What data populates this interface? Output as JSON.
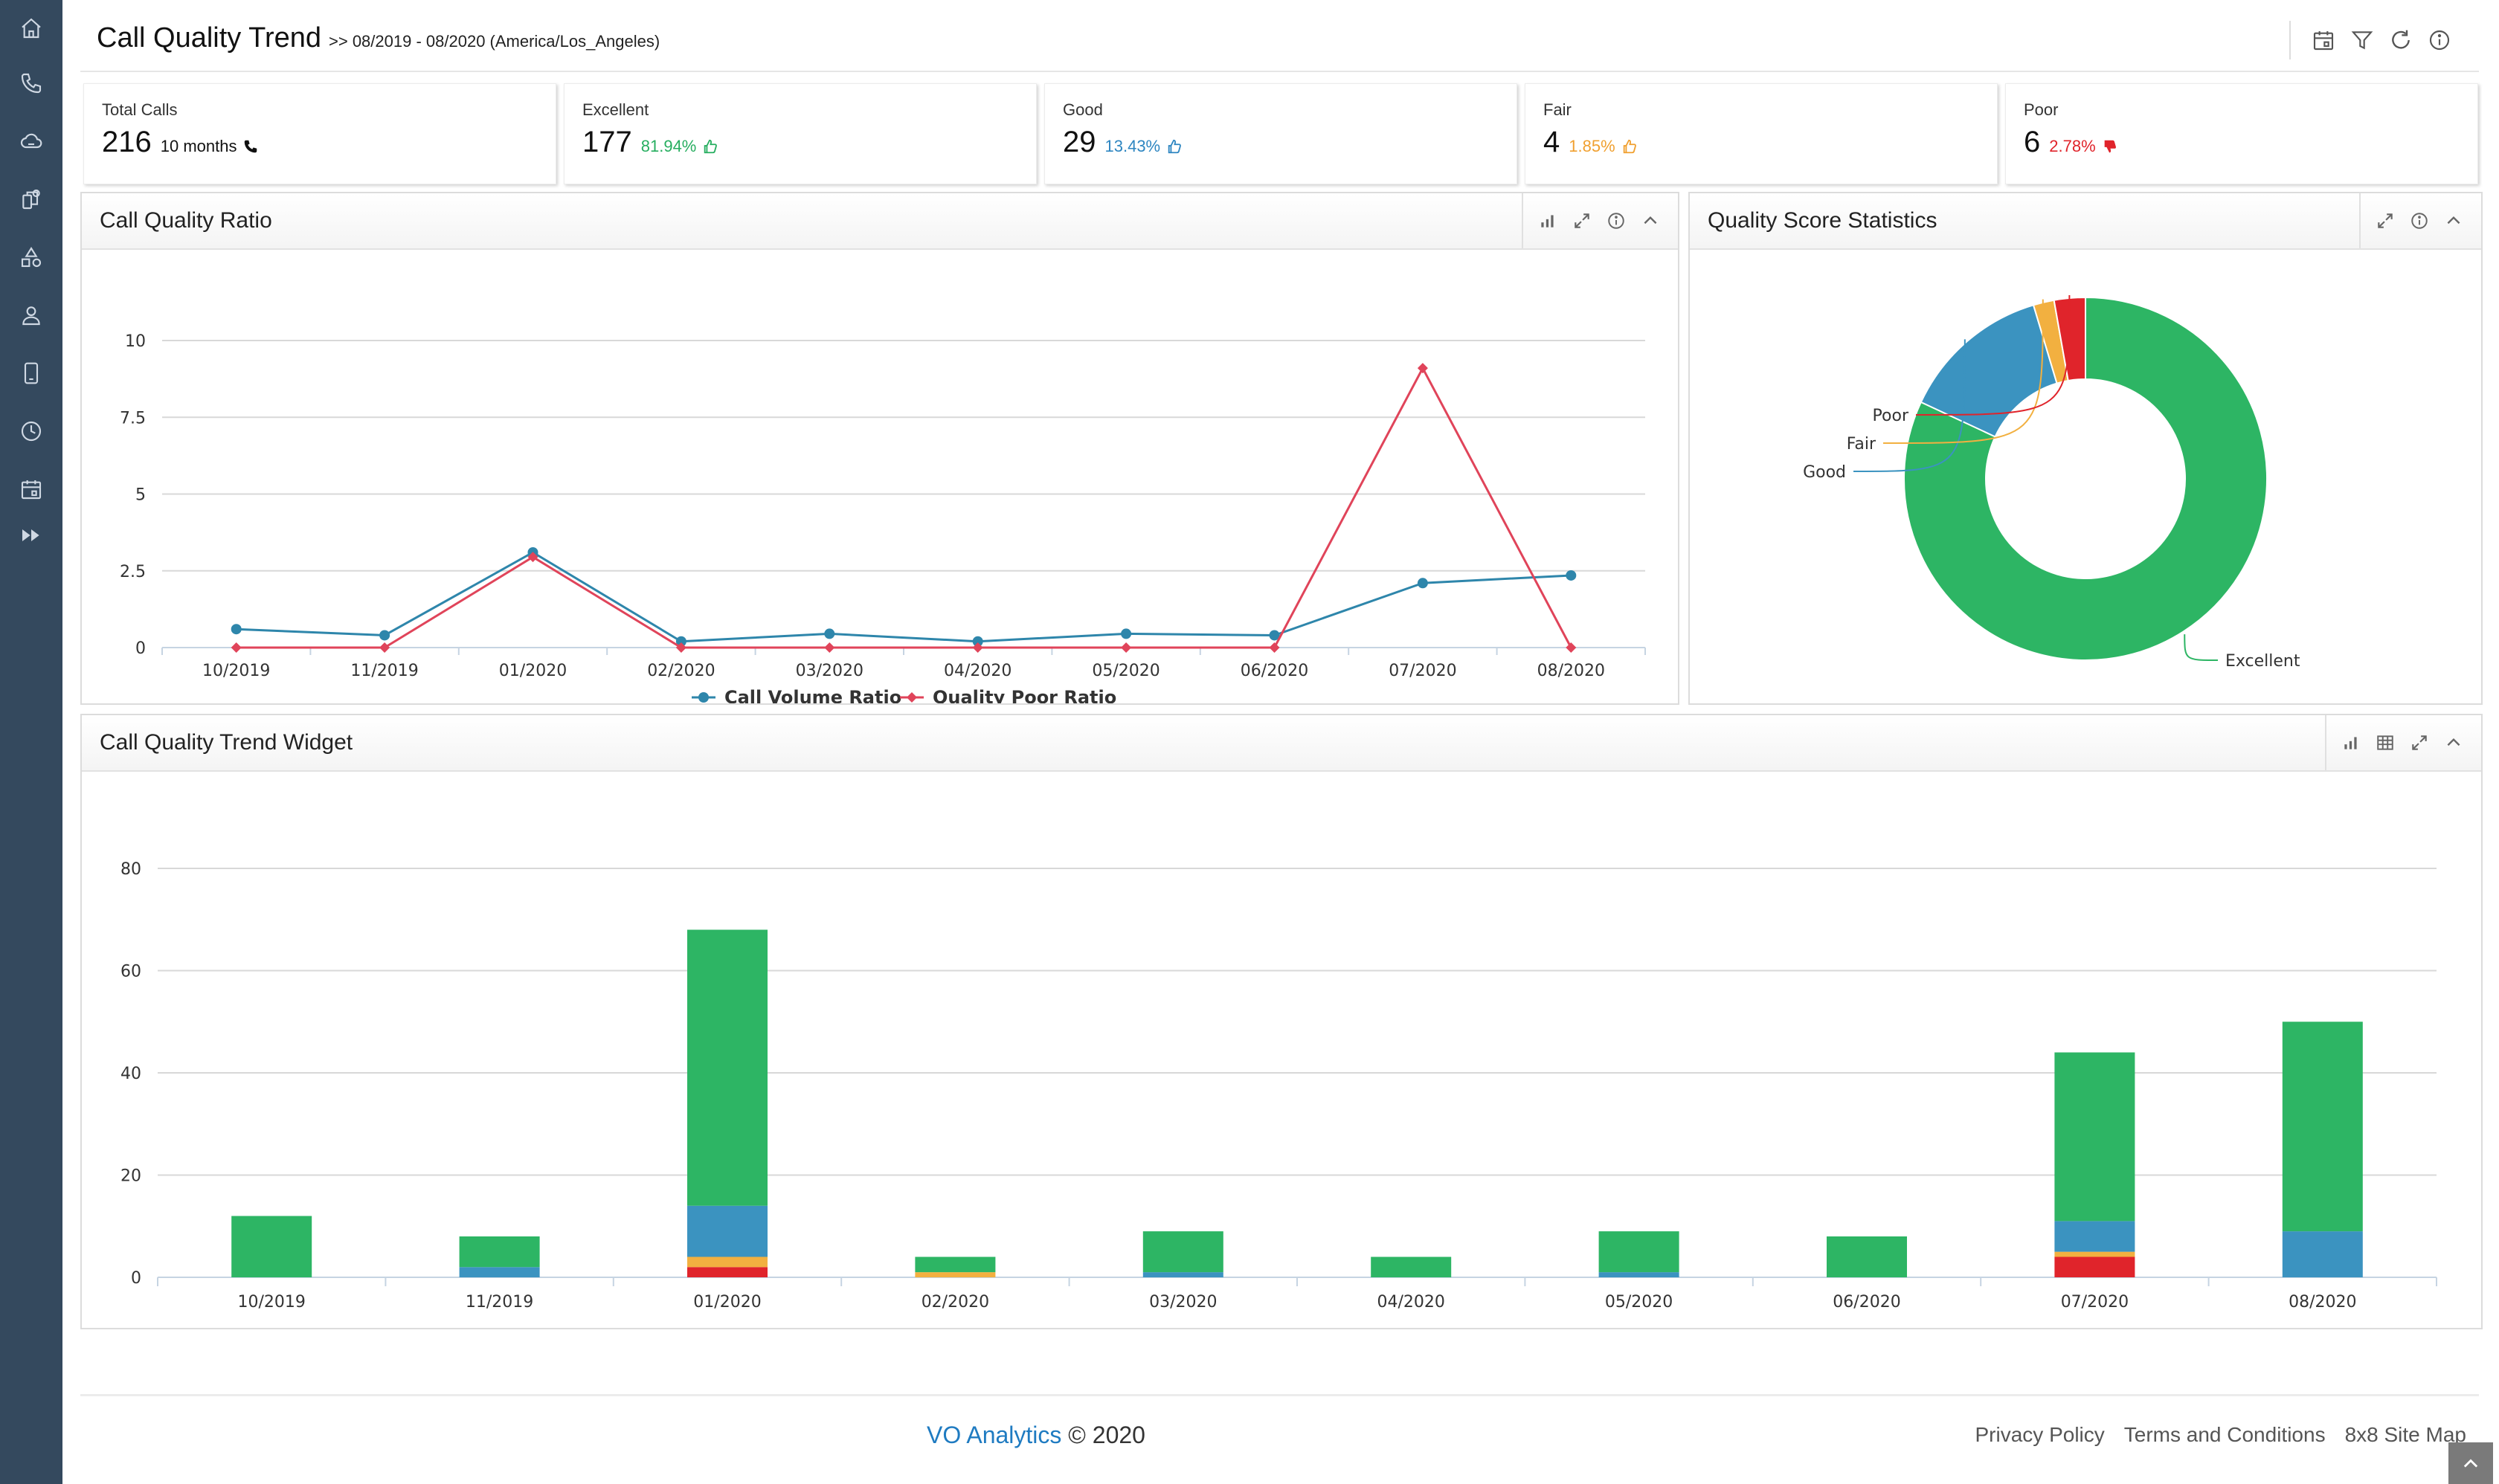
{
  "header": {
    "title": "Call Quality Trend",
    "range": ">> 08/2019 - 08/2020 (America/Los_Angeles)"
  },
  "sidebar": {
    "items": [
      "home-icon",
      "phone-icon",
      "cloud-icon",
      "devices-icon",
      "shapes-icon",
      "user-icon",
      "mobile-icon",
      "clock-icon",
      "calendar-icon",
      "fast-forward-icon"
    ]
  },
  "kpis": [
    {
      "label": "Total Calls",
      "value": "216",
      "sub": "10 months",
      "icon": "phone-icon",
      "color": "#111111"
    },
    {
      "label": "Excellent",
      "value": "177",
      "sub": "81.94%",
      "icon": "thumbs-up-icon",
      "color": "#27ae60"
    },
    {
      "label": "Good",
      "value": "29",
      "sub": "13.43%",
      "icon": "thumbs-up-icon",
      "color": "#2e86c1"
    },
    {
      "label": "Fair",
      "value": "4",
      "sub": "1.85%",
      "icon": "thumbs-up-icon",
      "color": "#f0a030"
    },
    {
      "label": "Poor",
      "value": "6",
      "sub": "2.78%",
      "icon": "thumbs-down-icon",
      "color": "#e0242b"
    }
  ],
  "panels": {
    "ratio": {
      "title": "Call Quality Ratio"
    },
    "stats": {
      "title": "Quality Score Statistics"
    },
    "trend": {
      "title": "Call Quality Trend Widget"
    }
  },
  "footer": {
    "brand": "VO Analytics",
    "copyright": " © 2020",
    "links": [
      "Privacy Policy",
      "Terms and Conditions",
      "8x8 Site Map"
    ]
  },
  "chart_data": [
    {
      "type": "line",
      "title": "Call Quality Ratio",
      "categories": [
        "10/2019",
        "11/2019",
        "01/2020",
        "02/2020",
        "03/2020",
        "04/2020",
        "05/2020",
        "06/2020",
        "07/2020",
        "08/2020"
      ],
      "ylim": [
        0,
        10
      ],
      "yticks": [
        "0",
        "2.5",
        "5",
        "7.5",
        "10"
      ],
      "series": [
        {
          "name": "Call Volume Ratio",
          "color": "#2e86ab",
          "values": [
            0.6,
            0.4,
            3.1,
            0.2,
            0.45,
            0.2,
            0.45,
            0.4,
            2.1,
            2.35
          ]
        },
        {
          "name": "Quality Poor Ratio",
          "color": "#e0445a",
          "values": [
            0,
            0,
            2.95,
            0,
            0,
            0,
            0,
            0,
            9.1,
            0
          ]
        }
      ],
      "grid": true,
      "legend": "bottom"
    },
    {
      "type": "pie",
      "title": "Quality Score Statistics",
      "labels": [
        "Excellent",
        "Good",
        "Fair",
        "Poor"
      ],
      "values": [
        177,
        29,
        4,
        6
      ],
      "colors": [
        "#2db564",
        "#3b93c0",
        "#f2b040",
        "#e0242b"
      ],
      "donut": true
    },
    {
      "type": "bar",
      "stacked": true,
      "title": "Call Quality Trend Widget",
      "categories": [
        "10/2019",
        "11/2019",
        "01/2020",
        "02/2020",
        "03/2020",
        "04/2020",
        "05/2020",
        "06/2020",
        "07/2020",
        "08/2020"
      ],
      "ylim": [
        0,
        80
      ],
      "yticks": [
        "0",
        "20",
        "40",
        "60",
        "80"
      ],
      "series": [
        {
          "name": "Excellent",
          "color": "#2db564",
          "values": [
            12,
            6,
            54,
            3,
            8,
            4,
            8,
            8,
            33,
            41
          ]
        },
        {
          "name": "Good",
          "color": "#3b93c0",
          "values": [
            0,
            2,
            10,
            0,
            1,
            0,
            1,
            0,
            6,
            9
          ]
        },
        {
          "name": "Fair",
          "color": "#f2b040",
          "values": [
            0,
            0,
            2,
            1,
            0,
            0,
            0,
            0,
            1,
            0
          ]
        },
        {
          "name": "Poor",
          "color": "#e0242b",
          "values": [
            0,
            0,
            2,
            0,
            0,
            0,
            0,
            0,
            4,
            0
          ]
        }
      ],
      "grid": true,
      "legend": "bottom"
    }
  ]
}
